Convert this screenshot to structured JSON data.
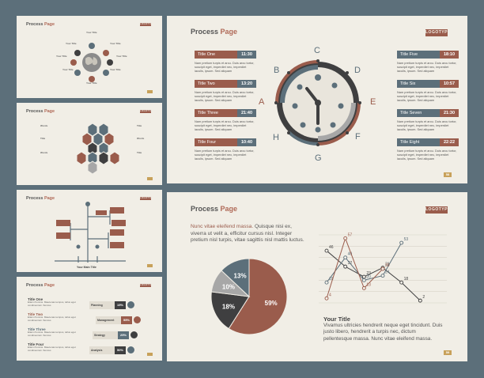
{
  "brand": {
    "title_prefix": "Process",
    "title_accent": "Page",
    "logo": "LOGOTYPE"
  },
  "colors": {
    "bg": "#5c6f7a",
    "slide": "#f1eee6",
    "red": "#9a5c4c",
    "blue": "#5c6f7a",
    "dark": "#3f3f40",
    "gray": "#a7a7a7",
    "gold": "#c8a15a"
  },
  "pages": {
    "clock": "58",
    "pie": "59"
  },
  "thumb1": {
    "items": [
      "Your Title",
      "Your Title",
      "Your Title",
      "Your Title",
      "Your Title",
      "Your Title",
      "Your Title",
      "Your Title"
    ]
  },
  "thumb2": {
    "items": [
      "Words",
      "Title",
      "Words",
      "Title",
      "Words",
      "Title"
    ]
  },
  "thumb3": {
    "caption": "Your Main Title",
    "labels": [
      "Your Title",
      "Your Title",
      "Your Title",
      "Your Title",
      "Your Title",
      "Your Title",
      "Your Title"
    ]
  },
  "thumb4": {
    "left": [
      {
        "title": "Title One",
        "text": "Etiam rhoncus. Maecenas tempus, tellus eget condimentum rhoncus"
      },
      {
        "title": "Title Two",
        "text": "Etiam rhoncus. Maecenas tempus, tellus eget condimentum rhoncus"
      },
      {
        "title": "Title Three",
        "text": "Etiam rhoncus. Maecenas tempus, tellus eget condimentum rhoncus"
      },
      {
        "title": "Title Four",
        "text": "Etiam rhoncus. Maecenas tempus, tellus eget condimentum rhoncus"
      }
    ],
    "bars": [
      {
        "label": "Planning",
        "value": "15%"
      },
      {
        "label": "Management",
        "value": "55%"
      },
      {
        "label": "Strategy",
        "value": "25%"
      },
      {
        "label": "Analysis",
        "value": "50%"
      }
    ]
  },
  "clock": {
    "letters": [
      "A",
      "B",
      "C",
      "D",
      "E",
      "F",
      "G",
      "H"
    ],
    "left": [
      {
        "name": "Title One",
        "time": "11:30"
      },
      {
        "name": "Title Two",
        "time": "13:20"
      },
      {
        "name": "Title Three",
        "time": "21:40"
      },
      {
        "name": "Title Four",
        "time": "10:40"
      }
    ],
    "right": [
      {
        "name": "Title Five",
        "time": "18:10"
      },
      {
        "name": "Title Six",
        "time": "10:57"
      },
      {
        "name": "Title Seven",
        "time": "21:30"
      },
      {
        "name": "Title Eight",
        "time": "22:22"
      }
    ],
    "body": "Nam pretium turpis et arcu. Duis arcu tortor, suscipit eget, imperdiet nec, imperdiet iaculis, ipsum. Sed aliquam"
  },
  "pie_slide": {
    "para_hl": "Nunc vitae eleifend massa.",
    "para_rest": "Quisque nisi ex, viverra ut velit a, efficitur cursus nisl. Integer pretium nisl turpis, vitae sagittis nisl mattis luctus.",
    "your_title": "Your Title",
    "your_text": "Vivamus ultricies hendrerit neque eget tincidunt. Duis justo libero, hendrerit a turpis nec, dictum pellentesque massa. Nunc vitae eleifend massa."
  },
  "chart_data": [
    {
      "type": "pie",
      "values": [
        59,
        18,
        10,
        13
      ],
      "labels": [
        "59%",
        "18%",
        "10%",
        "13%"
      ],
      "colors": [
        "#9a5c4c",
        "#3f3f40",
        "#a7a7a7",
        "#5c6f7a"
      ]
    },
    {
      "type": "line",
      "x": [
        1,
        2,
        3,
        4,
        5,
        6,
        7
      ],
      "series": [
        {
          "color": "#3f3f40",
          "values": [
            46,
            32,
            23,
            31,
            18,
            2,
            null
          ]
        },
        {
          "color": "#5c6f7a",
          "values": [
            18,
            40,
            20,
            24,
            53,
            null,
            null
          ]
        },
        {
          "color": "#9a5c4c",
          "values": [
            4,
            57,
            13,
            30,
            null,
            null,
            null
          ]
        }
      ],
      "points": [
        {
          "v": 46,
          "col": "#3f3f40"
        },
        {
          "v": 32,
          "col": "#3f3f40"
        },
        {
          "v": 23,
          "col": "#3f3f40"
        },
        {
          "v": 31,
          "col": "#3f3f40"
        },
        {
          "v": 18,
          "col": "#3f3f40"
        },
        {
          "v": 2,
          "col": "#3f3f40"
        },
        {
          "v": 18,
          "col": "#5c6f7a"
        },
        {
          "v": 40,
          "col": "#5c6f7a"
        },
        {
          "v": 20,
          "col": "#5c6f7a"
        },
        {
          "v": 24,
          "col": "#5c6f7a"
        },
        {
          "v": 53,
          "col": "#5c6f7a"
        },
        {
          "v": 4,
          "col": "#9a5c4c"
        },
        {
          "v": 57,
          "col": "#9a5c4c"
        },
        {
          "v": 13,
          "col": "#9a5c4c"
        },
        {
          "v": 30,
          "col": "#9a5c4c"
        }
      ]
    }
  ]
}
